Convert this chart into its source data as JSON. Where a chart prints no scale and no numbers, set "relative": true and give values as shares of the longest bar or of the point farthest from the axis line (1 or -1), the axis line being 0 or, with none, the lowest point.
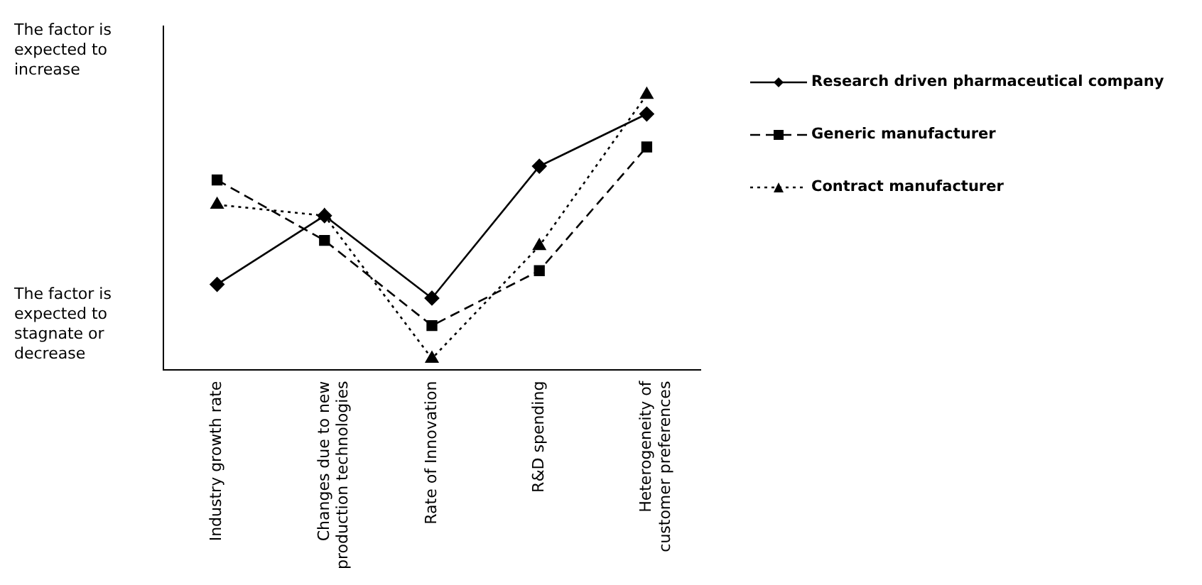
{
  "chart_data": {
    "type": "line",
    "relative": true,
    "legend": "right",
    "categories": [
      "Industry growth rate",
      "Changes due to new production technologies",
      "Rate of Innovation",
      "R&D spending",
      "Heterogeneity of customer preferences"
    ],
    "series": [
      {
        "name": "Research driven pharmaceutical company",
        "color": "#000000",
        "marker": "diamond",
        "line_style": "solid",
        "values": [
          0.31,
          0.56,
          0.26,
          0.74,
          0.93
        ]
      },
      {
        "name": "Generic manufacturer",
        "color": "#000000",
        "marker": "square",
        "line_style": "dashed",
        "values": [
          0.69,
          0.47,
          0.16,
          0.36,
          0.81
        ]
      },
      {
        "name": "Contract manufacturer",
        "color": "#000000",
        "marker": "triangle",
        "line_style": "dotted",
        "values": [
          0.6,
          0.56,
          0.04,
          0.45,
          1
        ]
      }
    ],
    "annotations": [
      "The factor is expected to increase",
      "The factor is expected to stagnate or decrease"
    ]
  }
}
